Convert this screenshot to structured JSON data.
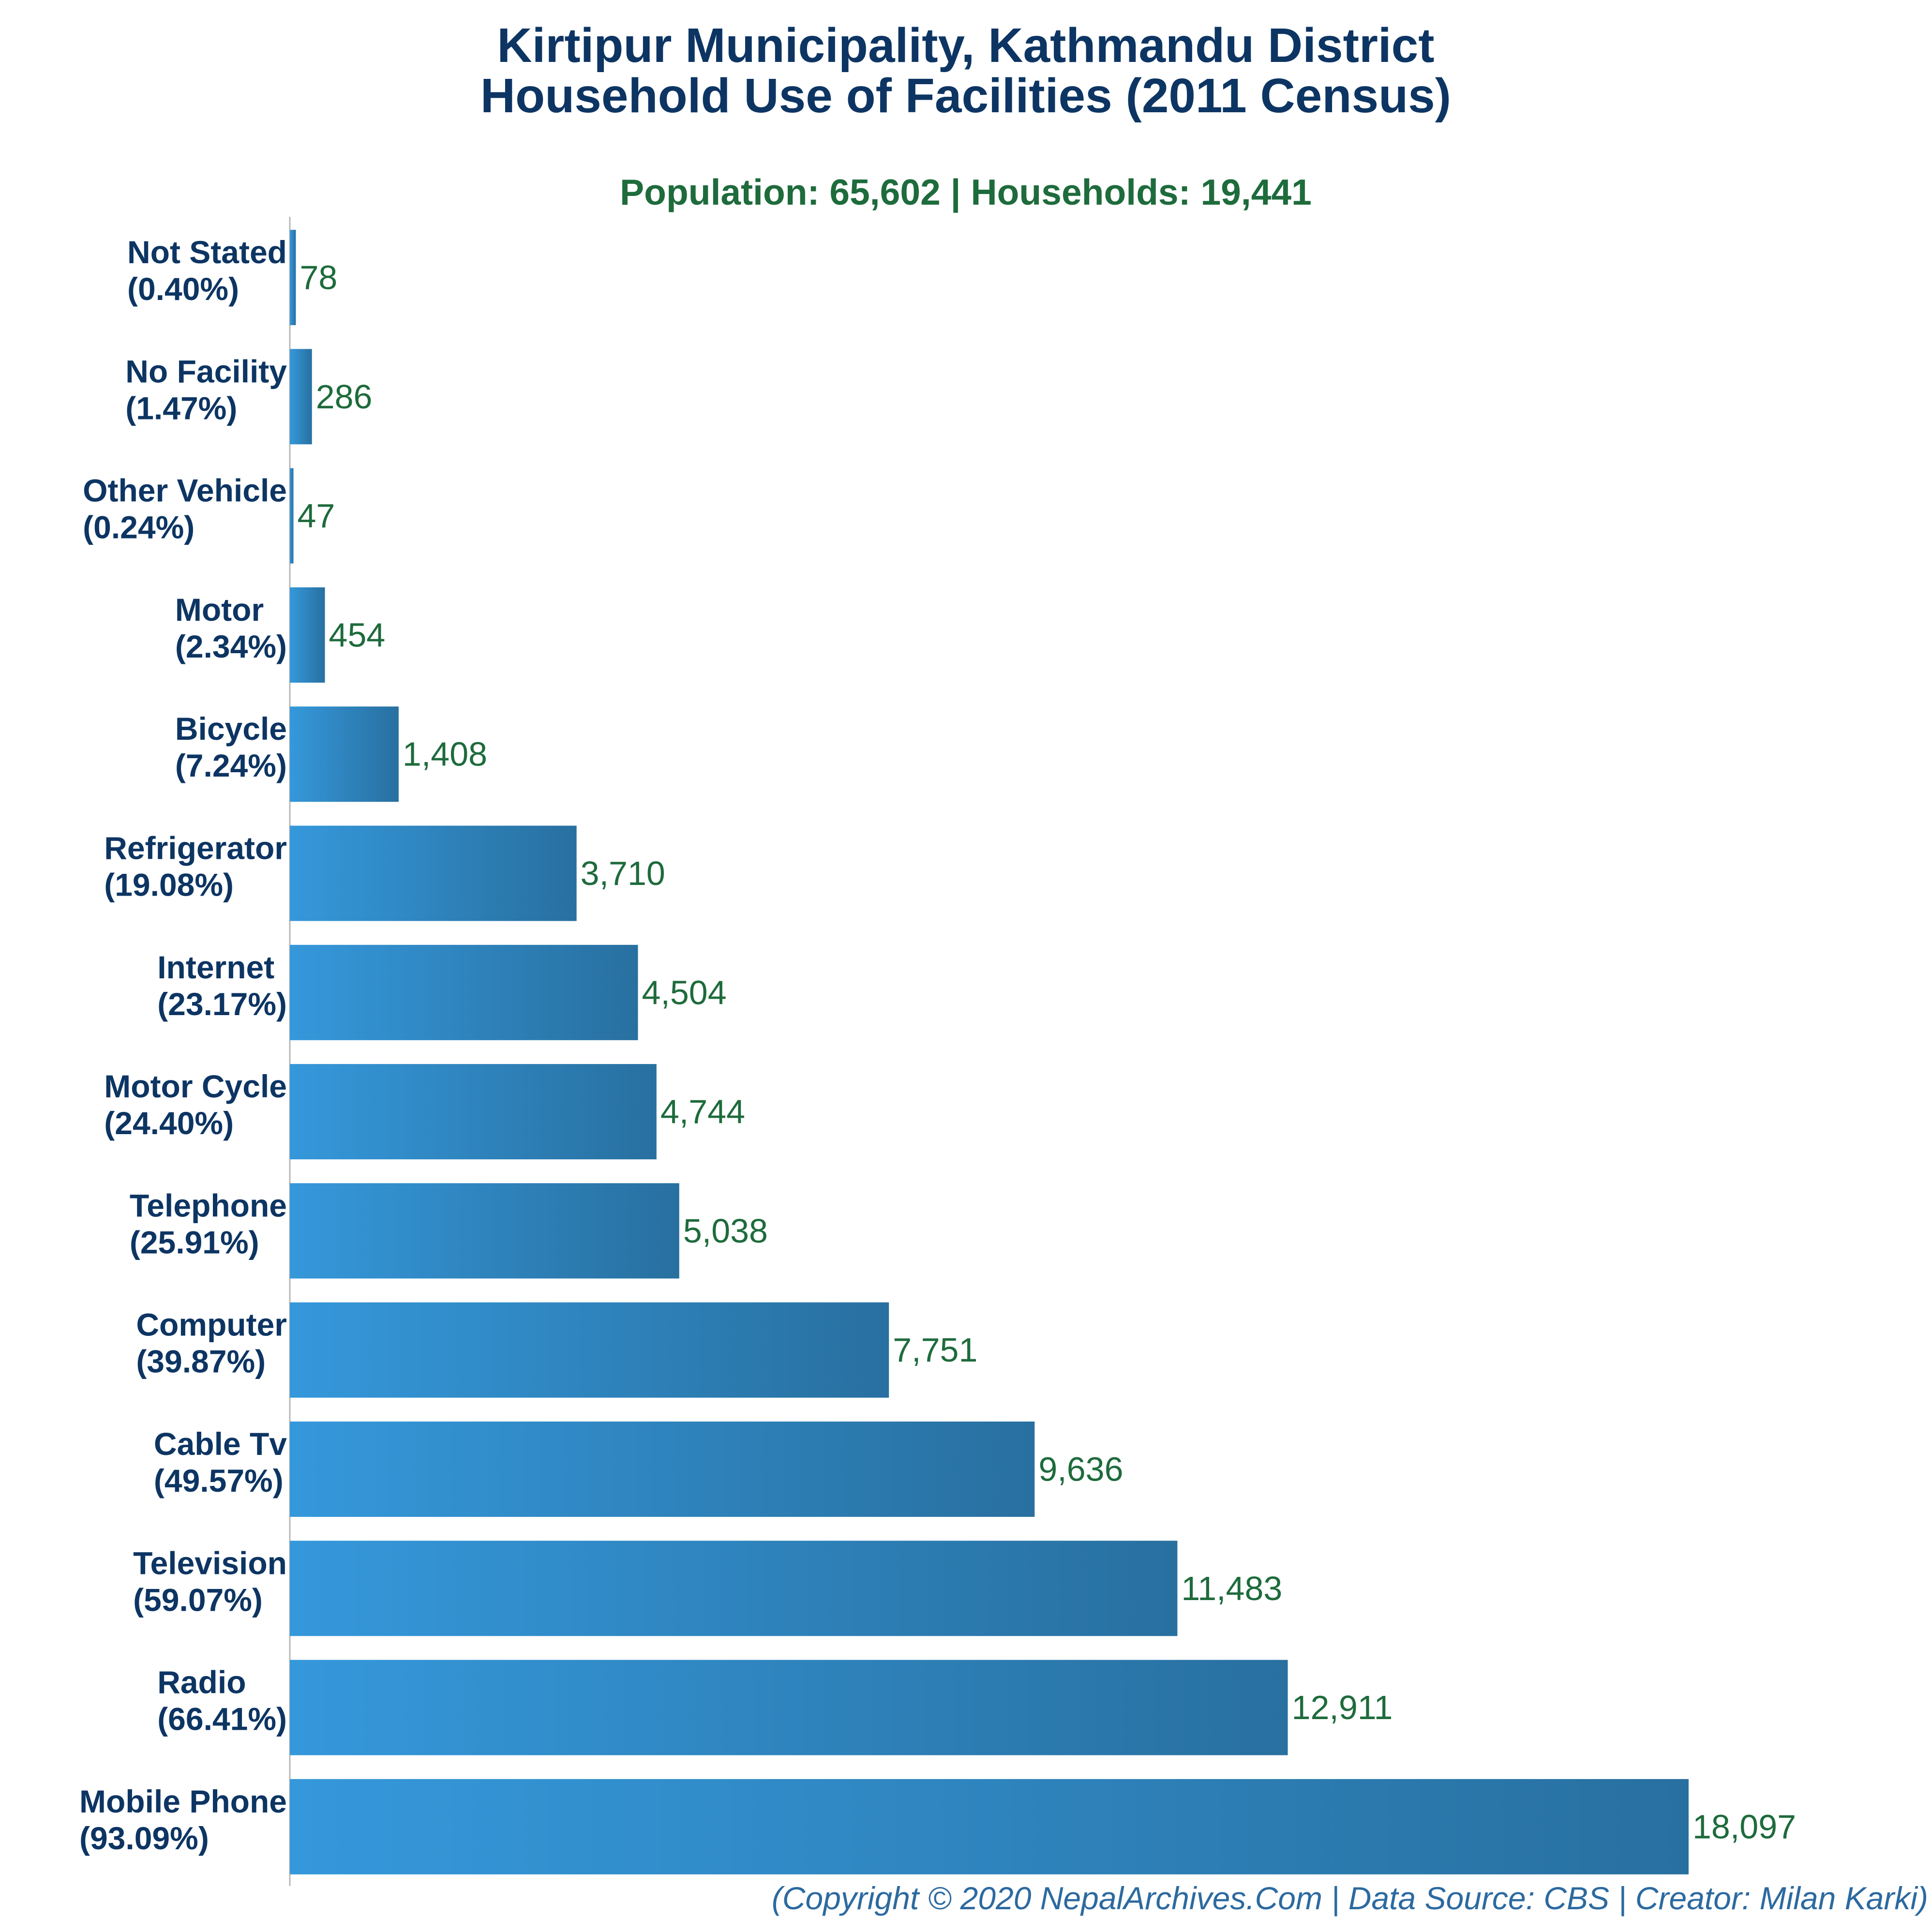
{
  "colors": {
    "title": "#0d3563",
    "subtitle": "#1e6b3c",
    "category_label": "#0d3563",
    "value_label": "#1e6b3c",
    "footer": "#2c6aa0",
    "bar_gradient_start": "#3598db",
    "bar_gradient_end": "#2870a0",
    "axis_line": "#b8b8b8"
  },
  "chart_data": {
    "type": "bar",
    "orientation": "horizontal",
    "title_lines": [
      "Kirtipur Municipality, Kathmandu District",
      "Household Use of Facilities (2011 Census)"
    ],
    "subtitle": "Population: 65,602 | Households: 19,441",
    "categories": [
      "Not Stated",
      "No Facility",
      "Other Vehicle",
      "Motor",
      "Bicycle",
      "Refrigerator",
      "Internet",
      "Motor Cycle",
      "Telephone",
      "Computer",
      "Cable Tv",
      "Television",
      "Radio",
      "Mobile Phone"
    ],
    "percent_labels": [
      "(0.40%)",
      "(1.47%)",
      "(0.24%)",
      "(2.34%)",
      "(7.24%)",
      "(19.08%)",
      "(23.17%)",
      "(24.40%)",
      "(25.91%)",
      "(39.87%)",
      "(49.57%)",
      "(59.07%)",
      "(66.41%)",
      "(93.09%)"
    ],
    "values": [
      78,
      286,
      47,
      454,
      1408,
      3710,
      4504,
      4744,
      5038,
      7751,
      9636,
      11483,
      12911,
      18097
    ],
    "value_labels": [
      "78",
      "286",
      "47",
      "454",
      "1,408",
      "3,710",
      "4,504",
      "4,744",
      "5,038",
      "7,751",
      "9,636",
      "11,483",
      "12,911",
      "18,097"
    ],
    "xlim": [
      0,
      18097
    ],
    "grid": false,
    "legend": "none",
    "xlabel": "",
    "ylabel": ""
  },
  "footer": "(Copyright © 2020 NepalArchives.Com | Data Source: CBS | Creator: Milan Karki)"
}
